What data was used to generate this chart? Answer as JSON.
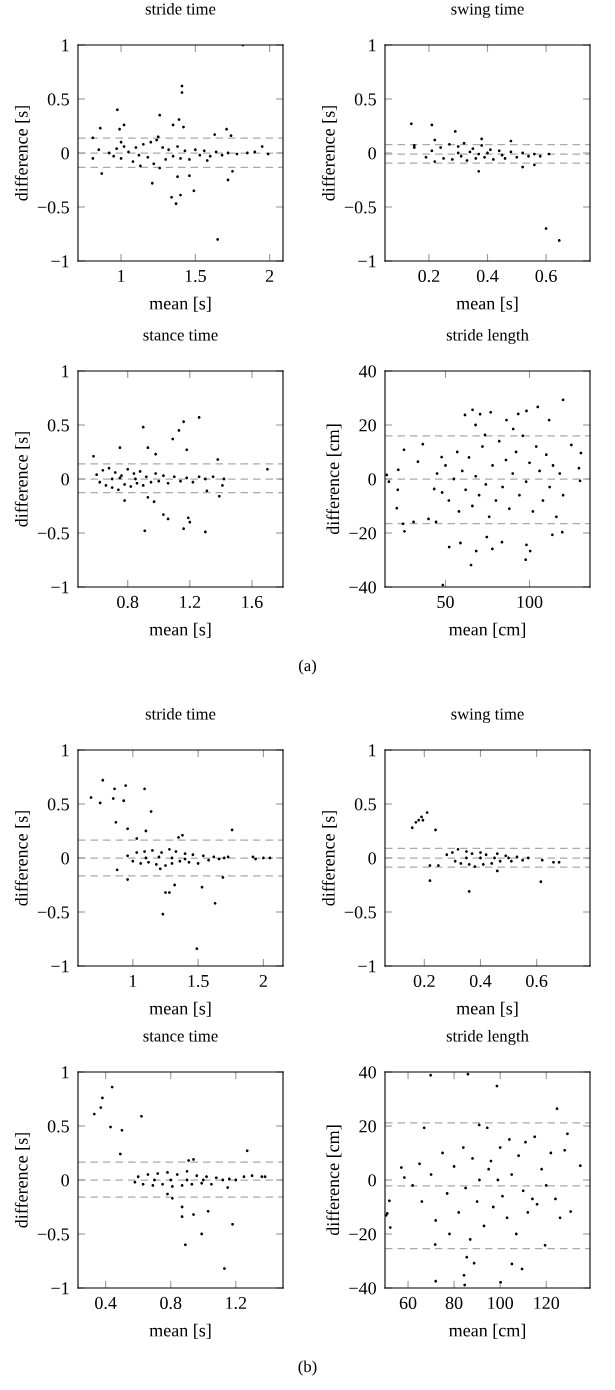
{
  "chart_data": [
    {
      "type": "scatter",
      "title": "stride time",
      "xlabel": "mean [s]",
      "ylabel": "difference [s]",
      "xlim": [
        0.71,
        2.09
      ],
      "xticks": [
        1,
        1.5,
        2
      ],
      "ylim": [
        -1,
        1
      ],
      "yticks": [
        {
          "value": -1,
          "label": "−1"
        },
        {
          "value": -0.5,
          "label": "−0.5"
        },
        0,
        0.5,
        1
      ],
      "marker": "circle",
      "grid": false,
      "ref_lines": [
        {
          "axis": "y",
          "value": 0.137,
          "color": "#aaaaaa",
          "line_style": "dashed"
        },
        {
          "axis": "y",
          "value": 0,
          "color": "#aaaaaa",
          "line_style": "dashed"
        },
        {
          "axis": "y",
          "value": -0.133,
          "color": "#aaaaaa",
          "line_style": "dashed"
        }
      ],
      "series": [
        {
          "color": "#000000",
          "x": [
            0.81,
            0.81,
            0.86,
            0.85,
            0.87,
            0.975,
            0.99,
            1.02,
            1.21,
            1.26,
            1.35,
            1.39,
            1.41,
            1.41,
            1.42,
            1.34,
            1.37,
            1.4,
            1.49,
            1.46,
            1.38,
            1.65,
            1.82,
            1.63,
            1.71,
            1.74,
            1.72,
            1.75,
            1.95,
            1.99,
            1.85,
            0.92,
            0.95,
            0.97,
            1.0,
            1.02,
            1.05,
            1.08,
            1.1,
            1.12,
            1.15,
            1.18,
            1.2,
            1.22,
            1.25,
            1.26,
            1.28,
            1.3,
            1.32,
            1.35,
            1.38,
            1.4,
            1.43,
            1.46,
            1.5,
            1.53,
            1.56,
            1.6,
            1.64,
            1.68,
            1.72,
            1.78,
            1.9,
            1.13,
            1.0,
            1.24,
            1.58
          ],
          "values": [
            0.14,
            -0.05,
            0.23,
            0.03,
            -0.19,
            0.4,
            0.22,
            0.26,
            -0.28,
            0.35,
            0.26,
            0.31,
            0.62,
            0.56,
            0.24,
            -0.41,
            -0.47,
            -0.39,
            -0.35,
            -0.21,
            -0.22,
            -0.8,
            1.0,
            0.17,
            0.22,
            0.16,
            -0.25,
            -0.17,
            0.06,
            -0.01,
            0.0,
            0.0,
            -0.03,
            0.04,
            -0.05,
            0.06,
            0.01,
            -0.08,
            0.05,
            -0.02,
            0.08,
            -0.04,
            0.1,
            -0.1,
            0.15,
            -0.14,
            0.05,
            -0.06,
            0.03,
            -0.03,
            0.06,
            -0.05,
            0.02,
            -0.06,
            0.03,
            -0.02,
            0.02,
            -0.03,
            0.01,
            -0.02,
            0.0,
            -0.01,
            0.01,
            -0.12,
            0.1,
            0.12,
            -0.07
          ]
        }
      ]
    },
    {
      "type": "scatter",
      "title": "swing time",
      "xlabel": "mean [s]",
      "ylabel": "difference [s]",
      "xlim": [
        0.05,
        0.75
      ],
      "xticks": [
        0.2,
        0.4,
        0.6
      ],
      "ylim": [
        -1,
        1
      ],
      "yticks": [
        {
          "value": -1,
          "label": "−1"
        },
        {
          "value": -0.5,
          "label": "−0.5"
        },
        0,
        0.5,
        1
      ],
      "marker": "circle",
      "grid": false,
      "ref_lines": [
        {
          "axis": "y",
          "value": 0.078,
          "color": "#aaaaaa",
          "line_style": "dashed"
        },
        {
          "axis": "y",
          "value": -0.011,
          "color": "#aaaaaa",
          "line_style": "dashed"
        },
        {
          "axis": "y",
          "value": -0.093,
          "color": "#aaaaaa",
          "line_style": "dashed"
        }
      ],
      "series": [
        {
          "color": "#000000",
          "x": [
            0.14,
            0.15,
            0.15,
            0.21,
            0.29,
            0.22,
            0.37,
            0.48,
            0.38,
            0.52,
            0.56,
            0.6,
            0.645,
            0.61,
            0.19,
            0.21,
            0.22,
            0.24,
            0.25,
            0.27,
            0.28,
            0.3,
            0.31,
            0.32,
            0.33,
            0.35,
            0.36,
            0.38,
            0.39,
            0.41,
            0.42,
            0.44,
            0.46,
            0.48,
            0.5,
            0.52,
            0.54,
            0.56,
            0.58,
            0.3,
            0.34,
            0.37,
            0.4,
            0.45
          ],
          "values": [
            0.27,
            0.07,
            0.05,
            0.26,
            0.2,
            0.12,
            -0.17,
            0.11,
            0.13,
            -0.13,
            -0.11,
            -0.7,
            -0.81,
            -0.01,
            -0.04,
            0.02,
            -0.08,
            0.05,
            -0.05,
            0.08,
            -0.06,
            0.06,
            -0.03,
            0.09,
            -0.07,
            0.04,
            -0.05,
            0.07,
            -0.04,
            0.03,
            -0.06,
            0.02,
            -0.05,
            0.01,
            -0.04,
            0.0,
            -0.03,
            -0.01,
            -0.03,
            0.0,
            0.01,
            -0.01,
            0.0,
            -0.02
          ]
        }
      ]
    },
    {
      "type": "scatter",
      "title": "stance time",
      "xlabel": "mean [s]",
      "ylabel": "difference [s]",
      "xlim": [
        0.48,
        1.8
      ],
      "xticks": [
        0.8,
        1.2,
        1.6
      ],
      "ylim": [
        -1,
        1
      ],
      "yticks": [
        {
          "value": -1,
          "label": "−1"
        },
        {
          "value": -0.5,
          "label": "−0.5"
        },
        0,
        0.5,
        1
      ],
      "marker": "circle",
      "grid": false,
      "ref_lines": [
        {
          "axis": "y",
          "value": 0.14,
          "color": "#aaaaaa",
          "line_style": "dashed"
        },
        {
          "axis": "y",
          "value": 0,
          "color": "#aaaaaa",
          "line_style": "dashed"
        },
        {
          "axis": "y",
          "value": -0.126,
          "color": "#aaaaaa",
          "line_style": "dashed"
        }
      ],
      "series": [
        {
          "color": "#000000",
          "x": [
            0.58,
            0.75,
            0.9,
            0.93,
            0.98,
            1.09,
            1.13,
            1.16,
            1.26,
            1.18,
            1.38,
            1.7,
            1.42,
            1.39,
            0.78,
            0.93,
            0.97,
            1.03,
            1.06,
            0.91,
            1.16,
            1.19,
            1.2,
            1.3,
            1.31,
            1.41,
            0.6,
            0.62,
            0.64,
            0.66,
            0.68,
            0.7,
            0.72,
            0.74,
            0.76,
            0.78,
            0.8,
            0.82,
            0.84,
            0.86,
            0.88,
            0.9,
            0.92,
            0.95,
            0.98,
            1.0,
            1.03,
            1.06,
            1.1,
            1.14,
            1.18,
            1.22,
            1.26,
            1.3,
            1.35,
            0.7,
            0.75,
            0.85
          ],
          "values": [
            0.21,
            0.29,
            0.48,
            0.29,
            0.23,
            0.37,
            0.45,
            0.53,
            0.57,
            0.27,
            0.18,
            0.09,
            0.0,
            -0.16,
            -0.2,
            -0.17,
            -0.21,
            -0.33,
            -0.37,
            -0.48,
            -0.46,
            -0.36,
            -0.4,
            -0.49,
            -0.11,
            -0.06,
            0.04,
            -0.03,
            0.08,
            -0.06,
            0.1,
            -0.08,
            0.06,
            -0.1,
            0.03,
            -0.05,
            0.09,
            -0.07,
            0.05,
            -0.04,
            0.07,
            -0.06,
            0.02,
            -0.03,
            0.05,
            -0.02,
            0.03,
            -0.04,
            0.02,
            -0.02,
            0.01,
            -0.03,
            0.02,
            0.0,
            0.02,
            0.0,
            0.01,
            0.0
          ]
        }
      ]
    },
    {
      "type": "scatter",
      "title": "stride length",
      "xlabel": "mean [cm]",
      "ylabel": "difference [cm]",
      "xlim": [
        14,
        136
      ],
      "xticks": [
        50,
        100
      ],
      "ylim": [
        -40,
        40
      ],
      "yticks": [
        {
          "value": -40,
          "label": "−40"
        },
        {
          "value": -20,
          "label": "−20"
        },
        0,
        20,
        40
      ],
      "marker": "circle",
      "grid": false,
      "annotations": [
        "(a)"
      ],
      "ref_lines": [
        {
          "axis": "y",
          "value": 16,
          "color": "#aaaaaa",
          "line_style": "dashed"
        },
        {
          "axis": "y",
          "value": 0,
          "color": "#aaaaaa",
          "line_style": "dashed"
        },
        {
          "axis": "y",
          "value": -16.5,
          "color": "#aaaaaa",
          "line_style": "dashed"
        }
      ],
      "series": [
        {
          "color": "#000000",
          "x": [
            15,
            16.3,
            21.6,
            21,
            24.7,
            25.6,
            25.3,
            21.9,
            31,
            33.6,
            36.5,
            39.9,
            44.4,
            47.7,
            43.3,
            52.2,
            58.9,
            61.6,
            66.1,
            67.9,
            70.6,
            73.5,
            76.9,
            65.2,
            68.3,
            74.6,
            77.9,
            83.6,
            86.3,
            90.3,
            93.3,
            98.2,
            104.9,
            111.7,
            120,
            98.2,
            100.4,
            97.7,
            48.4,
            119.5,
            113.6,
            124.9,
            130.6,
            129.4,
            130.1,
            45,
            48,
            50,
            52,
            55,
            57,
            58,
            60,
            62,
            64,
            66,
            68,
            70,
            72,
            74,
            76,
            78,
            80,
            82,
            84,
            86,
            88,
            90,
            92,
            94,
            96,
            98,
            100,
            102,
            104,
            106,
            108,
            110,
            112,
            114,
            116,
            118,
            120
          ],
          "values": [
            1.5,
            -1,
            -4,
            -10.8,
            -16.6,
            -19.4,
            10.8,
            3.4,
            -15.9,
            6.4,
            12.9,
            -14.8,
            -15.9,
            8.1,
            -3.7,
            -25.2,
            -23.7,
            23.7,
            25.6,
            20,
            24,
            16.3,
            24.7,
            -31.9,
            -26.7,
            -21.5,
            -25.9,
            -23.4,
            21.8,
            18.5,
            24.1,
            25.2,
            26.7,
            21.8,
            29.3,
            -24.4,
            -26.7,
            -29.9,
            -39.3,
            -19.7,
            -20.7,
            12.6,
            9.6,
            4,
            -0.7,
            2,
            -5,
            5,
            -8,
            0,
            10,
            -12,
            3,
            -4,
            8,
            -10,
            1,
            -6,
            12,
            -2,
            -14,
            5,
            -8,
            14,
            -3,
            7,
            -11,
            2,
            10,
            -6,
            16,
            -1,
            6,
            -12,
            12,
            3,
            -8,
            9,
            -3,
            5,
            -14,
            2,
            -6
          ]
        }
      ]
    },
    {
      "type": "scatter",
      "title": "stride time",
      "xlabel": "mean [s]",
      "ylabel": "difference [s]",
      "xlim": [
        0.58,
        2.15
      ],
      "xticks": [
        1,
        1.5,
        2
      ],
      "ylim": [
        -1,
        1
      ],
      "yticks": [
        {
          "value": -1,
          "label": "−1"
        },
        {
          "value": -0.5,
          "label": "−0.5"
        },
        0,
        0.5,
        1
      ],
      "marker": "circle",
      "grid": false,
      "ref_lines": [
        {
          "axis": "y",
          "value": 0.165,
          "color": "#aaaaaa",
          "line_style": "dashed"
        },
        {
          "axis": "y",
          "value": 0,
          "color": "#aaaaaa",
          "line_style": "dashed"
        },
        {
          "axis": "y",
          "value": -0.165,
          "color": "#aaaaaa",
          "line_style": "dashed"
        }
      ],
      "series": [
        {
          "color": "#000000",
          "x": [
            0.68,
            0.75,
            0.77,
            0.85,
            0.86,
            0.93,
            0.945,
            0.87,
            0.96,
            1.09,
            1.14,
            1.1,
            1.03,
            0.88,
            0.96,
            1.23,
            1.25,
            1.28,
            1.32,
            1.35,
            1.38,
            1.49,
            1.53,
            1.63,
            1.69,
            1.76,
            1.92,
            1.94,
            2.0,
            2.05,
            0.96,
            1.0,
            1.03,
            1.06,
            1.09,
            1.12,
            1.15,
            1.18,
            1.21,
            1.22,
            1.25,
            1.28,
            1.3,
            1.33,
            1.36,
            1.4,
            1.43,
            1.46,
            1.5,
            1.54,
            1.58,
            1.62,
            1.66,
            1.7,
            1.73,
            1.1,
            1.2,
            1.3,
            1.4
          ],
          "values": [
            0.56,
            0.51,
            0.72,
            0.55,
            0.64,
            0.53,
            0.67,
            0.33,
            0.27,
            0.64,
            0.43,
            0.25,
            0.18,
            -0.11,
            -0.2,
            -0.52,
            -0.32,
            -0.32,
            -0.25,
            0.19,
            0.21,
            -0.84,
            -0.27,
            -0.42,
            -0.18,
            0.26,
            0.01,
            -0.01,
            0.0,
            0.0,
            0.02,
            -0.03,
            0.05,
            -0.05,
            0.06,
            -0.04,
            0.07,
            -0.06,
            -0.1,
            0.05,
            -0.07,
            0.08,
            -0.05,
            0.06,
            -0.03,
            0.04,
            -0.04,
            0.03,
            -0.05,
            0.02,
            -0.02,
            0.01,
            -0.01,
            0.0,
            0.01,
            0.0,
            0.01,
            0.0,
            -0.01
          ]
        }
      ]
    },
    {
      "type": "scatter",
      "title": "swing time",
      "xlabel": "mean [s]",
      "ylabel": "difference [s]",
      "xlim": [
        0.06,
        0.79
      ],
      "xticks": [
        0.2,
        0.4,
        0.6
      ],
      "ylim": [
        -1,
        1
      ],
      "yticks": [
        {
          "value": -1,
          "label": "−1"
        },
        {
          "value": -0.5,
          "label": "−0.5"
        },
        0,
        0.5,
        1
      ],
      "marker": "circle",
      "grid": false,
      "ref_lines": [
        {
          "axis": "y",
          "value": 0.088,
          "color": "#aaaaaa",
          "line_style": "dashed"
        },
        {
          "axis": "y",
          "value": 0,
          "color": "#aaaaaa",
          "line_style": "dashed"
        },
        {
          "axis": "y",
          "value": -0.085,
          "color": "#aaaaaa",
          "line_style": "dashed"
        }
      ],
      "series": [
        {
          "color": "#000000",
          "x": [
            0.157,
            0.17,
            0.18,
            0.19,
            0.195,
            0.21,
            0.24,
            0.22,
            0.22,
            0.25,
            0.36,
            0.615,
            0.62,
            0.66,
            0.68,
            0.46,
            0.28,
            0.3,
            0.31,
            0.32,
            0.33,
            0.35,
            0.36,
            0.37,
            0.38,
            0.4,
            0.41,
            0.42,
            0.44,
            0.46,
            0.47,
            0.49,
            0.51,
            0.53,
            0.55,
            0.57,
            0.35,
            0.4,
            0.45,
            0.5
          ],
          "values": [
            0.28,
            0.33,
            0.35,
            0.38,
            0.35,
            0.42,
            0.26,
            -0.07,
            -0.21,
            -0.07,
            -0.31,
            -0.22,
            -0.02,
            -0.04,
            -0.04,
            -0.12,
            0.03,
            0.05,
            -0.03,
            0.08,
            -0.05,
            0.06,
            -0.06,
            0.04,
            -0.08,
            0.05,
            -0.06,
            0.03,
            -0.05,
            0.04,
            -0.03,
            0.02,
            -0.03,
            0.01,
            -0.02,
            0.0,
            0.0,
            0.0,
            0.0,
            0.0
          ]
        }
      ]
    },
    {
      "type": "scatter",
      "title": "stance time",
      "xlabel": "mean [s]",
      "ylabel": "difference [s]",
      "xlim": [
        0.23,
        1.49
      ],
      "xticks": [
        0.4,
        0.8,
        1.2
      ],
      "ylim": [
        -1,
        1
      ],
      "yticks": [
        {
          "value": -1,
          "label": "−1"
        },
        {
          "value": -0.5,
          "label": "−0.5"
        },
        0,
        0.5,
        1
      ],
      "marker": "circle",
      "grid": false,
      "ref_lines": [
        {
          "axis": "y",
          "value": 0.166,
          "color": "#aaaaaa",
          "line_style": "dashed"
        },
        {
          "axis": "y",
          "value": 0,
          "color": "#aaaaaa",
          "line_style": "dashed"
        },
        {
          "axis": "y",
          "value": -0.158,
          "color": "#aaaaaa",
          "line_style": "dashed"
        }
      ],
      "series": [
        {
          "color": "#000000",
          "x": [
            0.33,
            0.37,
            0.38,
            0.44,
            0.43,
            0.5,
            0.49,
            0.62,
            1.27,
            1.38,
            0.78,
            0.81,
            0.87,
            0.87,
            0.94,
            0.89,
            0.99,
            1.03,
            1.13,
            1.18,
            1.15,
            0.91,
            0.94,
            0.58,
            0.6,
            0.63,
            0.66,
            0.69,
            0.72,
            0.75,
            0.78,
            0.81,
            0.84,
            0.87,
            0.9,
            0.93,
            0.96,
            0.99,
            1.02,
            1.05,
            1.08,
            1.12,
            1.16,
            1.2,
            1.25,
            1.3,
            1.36,
            0.7,
            0.8,
            0.9,
            1.0
          ],
          "values": [
            0.61,
            0.67,
            0.76,
            0.86,
            0.49,
            0.46,
            0.24,
            0.59,
            0.27,
            0.03,
            -0.13,
            -0.17,
            -0.25,
            -0.34,
            -0.32,
            -0.6,
            -0.5,
            -0.29,
            -0.82,
            -0.41,
            -0.07,
            0.18,
            0.19,
            -0.02,
            0.03,
            -0.04,
            0.05,
            -0.05,
            0.06,
            -0.04,
            0.07,
            -0.06,
            0.05,
            -0.05,
            0.08,
            -0.04,
            0.04,
            -0.03,
            0.03,
            -0.04,
            0.02,
            0.0,
            0.01,
            0.0,
            0.03,
            0.04,
            0.03,
            0.0,
            0.0,
            0.0,
            0.0
          ]
        }
      ]
    },
    {
      "type": "scatter",
      "title": "stride length",
      "xlabel": "mean [cm]",
      "ylabel": "difference [cm]",
      "xlim": [
        50,
        139
      ],
      "xticks": [
        60,
        80,
        100,
        120
      ],
      "ylim": [
        -40,
        40
      ],
      "yticks": [
        {
          "value": -40,
          "label": "−40"
        },
        {
          "value": -20,
          "label": "−20"
        },
        0,
        20,
        40
      ],
      "marker": "circle",
      "grid": false,
      "annotations": [
        "(b)"
      ],
      "ref_lines": [
        {
          "axis": "y",
          "value": 21.2,
          "color": "#aaaaaa",
          "line_style": "dashed"
        },
        {
          "axis": "y",
          "value": -2.2,
          "color": "#aaaaaa",
          "line_style": "dashed"
        },
        {
          "axis": "y",
          "value": -25.4,
          "color": "#aaaaaa",
          "line_style": "dashed"
        }
      ],
      "series": [
        {
          "color": "#000000",
          "x": [
            50.5,
            51,
            52.3,
            51.9,
            57.1,
            58.4,
            67,
            69.8,
            71.8,
            72,
            86,
            84.6,
            84.3,
            85.5,
            88.7,
            98.6,
            100.2,
            105.1,
            109.5,
            124.7,
            129.2,
            130.6,
            134.8,
            119.5,
            90.9,
            94.4,
            62,
            65,
            66,
            70,
            72,
            75,
            77,
            78,
            80,
            82,
            84,
            85,
            87,
            88,
            90,
            91,
            93,
            95,
            96,
            97,
            99,
            100,
            101,
            103,
            104,
            105,
            107,
            108,
            110,
            111,
            112,
            114,
            115,
            116,
            118,
            120,
            122,
            124,
            126,
            128
          ],
          "values": [
            -13.1,
            -12.4,
            -17.6,
            -7.7,
            4.6,
            0.9,
            19.3,
            38.8,
            -23.9,
            -37.5,
            39.2,
            -38.9,
            -35.3,
            -28.6,
            -30.8,
            34.8,
            -37.9,
            -31.1,
            -33,
            26.4,
            17.1,
            -11.7,
            5.3,
            -24.2,
            20.4,
            19.3,
            -2,
            6,
            -8,
            2,
            -15,
            10,
            -5,
            -20,
            5,
            -12,
            12,
            -3,
            -22,
            8,
            -8,
            0,
            -17,
            4,
            7,
            -10,
            0,
            12,
            -6,
            -14,
            15,
            2,
            -20,
            9,
            -4,
            14,
            -12,
            -7,
            16,
            -9,
            4,
            -2,
            10,
            -7,
            -14,
            11
          ]
        }
      ]
    }
  ]
}
